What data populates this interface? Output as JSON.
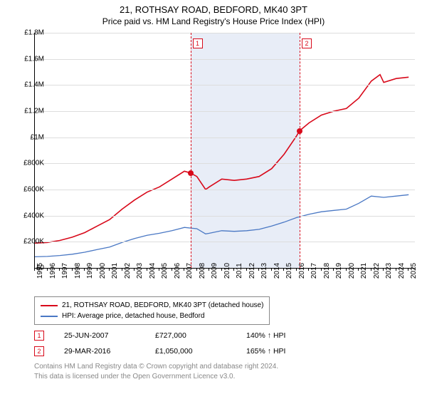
{
  "title": "21, ROTHSAY ROAD, BEDFORD, MK40 3PT",
  "subtitle": "Price paid vs. HM Land Registry's House Price Index (HPI)",
  "chart": {
    "type": "line",
    "background_color": "#ffffff",
    "grid_color": "#dddddd",
    "shaded_color": "#e8edf7",
    "x_axis": {
      "min": 1995,
      "max": 2025.5,
      "ticks": [
        1995,
        1996,
        1997,
        1998,
        1999,
        2000,
        2001,
        2002,
        2003,
        2004,
        2005,
        2006,
        2007,
        2008,
        2009,
        2010,
        2011,
        2012,
        2013,
        2014,
        2015,
        2016,
        2017,
        2018,
        2019,
        2020,
        2021,
        2022,
        2023,
        2024,
        2025
      ],
      "label_fontsize": 10
    },
    "y_axis": {
      "min": 0,
      "max": 1800000,
      "tick_step": 200000,
      "tick_labels": [
        "£0",
        "£200K",
        "£400K",
        "£600K",
        "£800K",
        "£1M",
        "£1.2M",
        "£1.4M",
        "£1.6M",
        "£1.8M"
      ],
      "label_fontsize": 10
    },
    "shaded_region": {
      "x_start": 2007.48,
      "x_end": 2016.25
    },
    "series": [
      {
        "name": "price_paid",
        "label": "21, ROTHSAY ROAD, BEDFORD, MK40 3PT (detached house)",
        "color": "#d8091a",
        "line_width": 1.6,
        "data": [
          [
            1995,
            190000
          ],
          [
            1996,
            195000
          ],
          [
            1997,
            210000
          ],
          [
            1998,
            235000
          ],
          [
            1999,
            270000
          ],
          [
            2000,
            320000
          ],
          [
            2001,
            370000
          ],
          [
            2002,
            450000
          ],
          [
            2003,
            520000
          ],
          [
            2004,
            580000
          ],
          [
            2005,
            620000
          ],
          [
            2006,
            680000
          ],
          [
            2007,
            740000
          ],
          [
            2007.48,
            727000
          ],
          [
            2008,
            700000
          ],
          [
            2008.7,
            600000
          ],
          [
            2009,
            620000
          ],
          [
            2010,
            680000
          ],
          [
            2011,
            670000
          ],
          [
            2012,
            680000
          ],
          [
            2013,
            700000
          ],
          [
            2014,
            760000
          ],
          [
            2015,
            870000
          ],
          [
            2016,
            1010000
          ],
          [
            2016.25,
            1050000
          ],
          [
            2017,
            1110000
          ],
          [
            2018,
            1170000
          ],
          [
            2019,
            1200000
          ],
          [
            2020,
            1220000
          ],
          [
            2021,
            1300000
          ],
          [
            2022,
            1430000
          ],
          [
            2022.7,
            1480000
          ],
          [
            2023,
            1420000
          ],
          [
            2024,
            1450000
          ],
          [
            2025,
            1460000
          ]
        ]
      },
      {
        "name": "hpi",
        "label": "HPI: Average price, detached house, Bedford",
        "color": "#4a78c4",
        "line_width": 1.3,
        "data": [
          [
            1995,
            85000
          ],
          [
            1996,
            88000
          ],
          [
            1997,
            95000
          ],
          [
            1998,
            105000
          ],
          [
            1999,
            120000
          ],
          [
            2000,
            140000
          ],
          [
            2001,
            160000
          ],
          [
            2002,
            195000
          ],
          [
            2003,
            225000
          ],
          [
            2004,
            250000
          ],
          [
            2005,
            265000
          ],
          [
            2006,
            285000
          ],
          [
            2007,
            310000
          ],
          [
            2008,
            300000
          ],
          [
            2008.7,
            260000
          ],
          [
            2009,
            265000
          ],
          [
            2010,
            285000
          ],
          [
            2011,
            280000
          ],
          [
            2012,
            285000
          ],
          [
            2013,
            295000
          ],
          [
            2014,
            320000
          ],
          [
            2015,
            350000
          ],
          [
            2016,
            385000
          ],
          [
            2017,
            410000
          ],
          [
            2018,
            430000
          ],
          [
            2019,
            440000
          ],
          [
            2020,
            450000
          ],
          [
            2021,
            495000
          ],
          [
            2022,
            550000
          ],
          [
            2023,
            540000
          ],
          [
            2024,
            550000
          ],
          [
            2025,
            560000
          ]
        ]
      }
    ],
    "sale_markers": [
      {
        "idx": "1",
        "x": 2007.48,
        "y": 727000,
        "color": "#d8091a"
      },
      {
        "idx": "2",
        "x": 2016.25,
        "y": 1050000,
        "color": "#d8091a"
      }
    ]
  },
  "legend": {
    "items": [
      {
        "color": "#d8091a",
        "label": "21, ROTHSAY ROAD, BEDFORD, MK40 3PT (detached house)"
      },
      {
        "color": "#4a78c4",
        "label": "HPI: Average price, detached house, Bedford"
      }
    ]
  },
  "sales": [
    {
      "idx": "1",
      "color": "#d8091a",
      "date": "25-JUN-2007",
      "price": "£727,000",
      "hpi": "140% ↑ HPI"
    },
    {
      "idx": "2",
      "color": "#d8091a",
      "date": "29-MAR-2016",
      "price": "£1,050,000",
      "hpi": "165% ↑ HPI"
    }
  ],
  "footer": {
    "line1": "Contains HM Land Registry data © Crown copyright and database right 2024.",
    "line2": "This data is licensed under the Open Government Licence v3.0."
  }
}
